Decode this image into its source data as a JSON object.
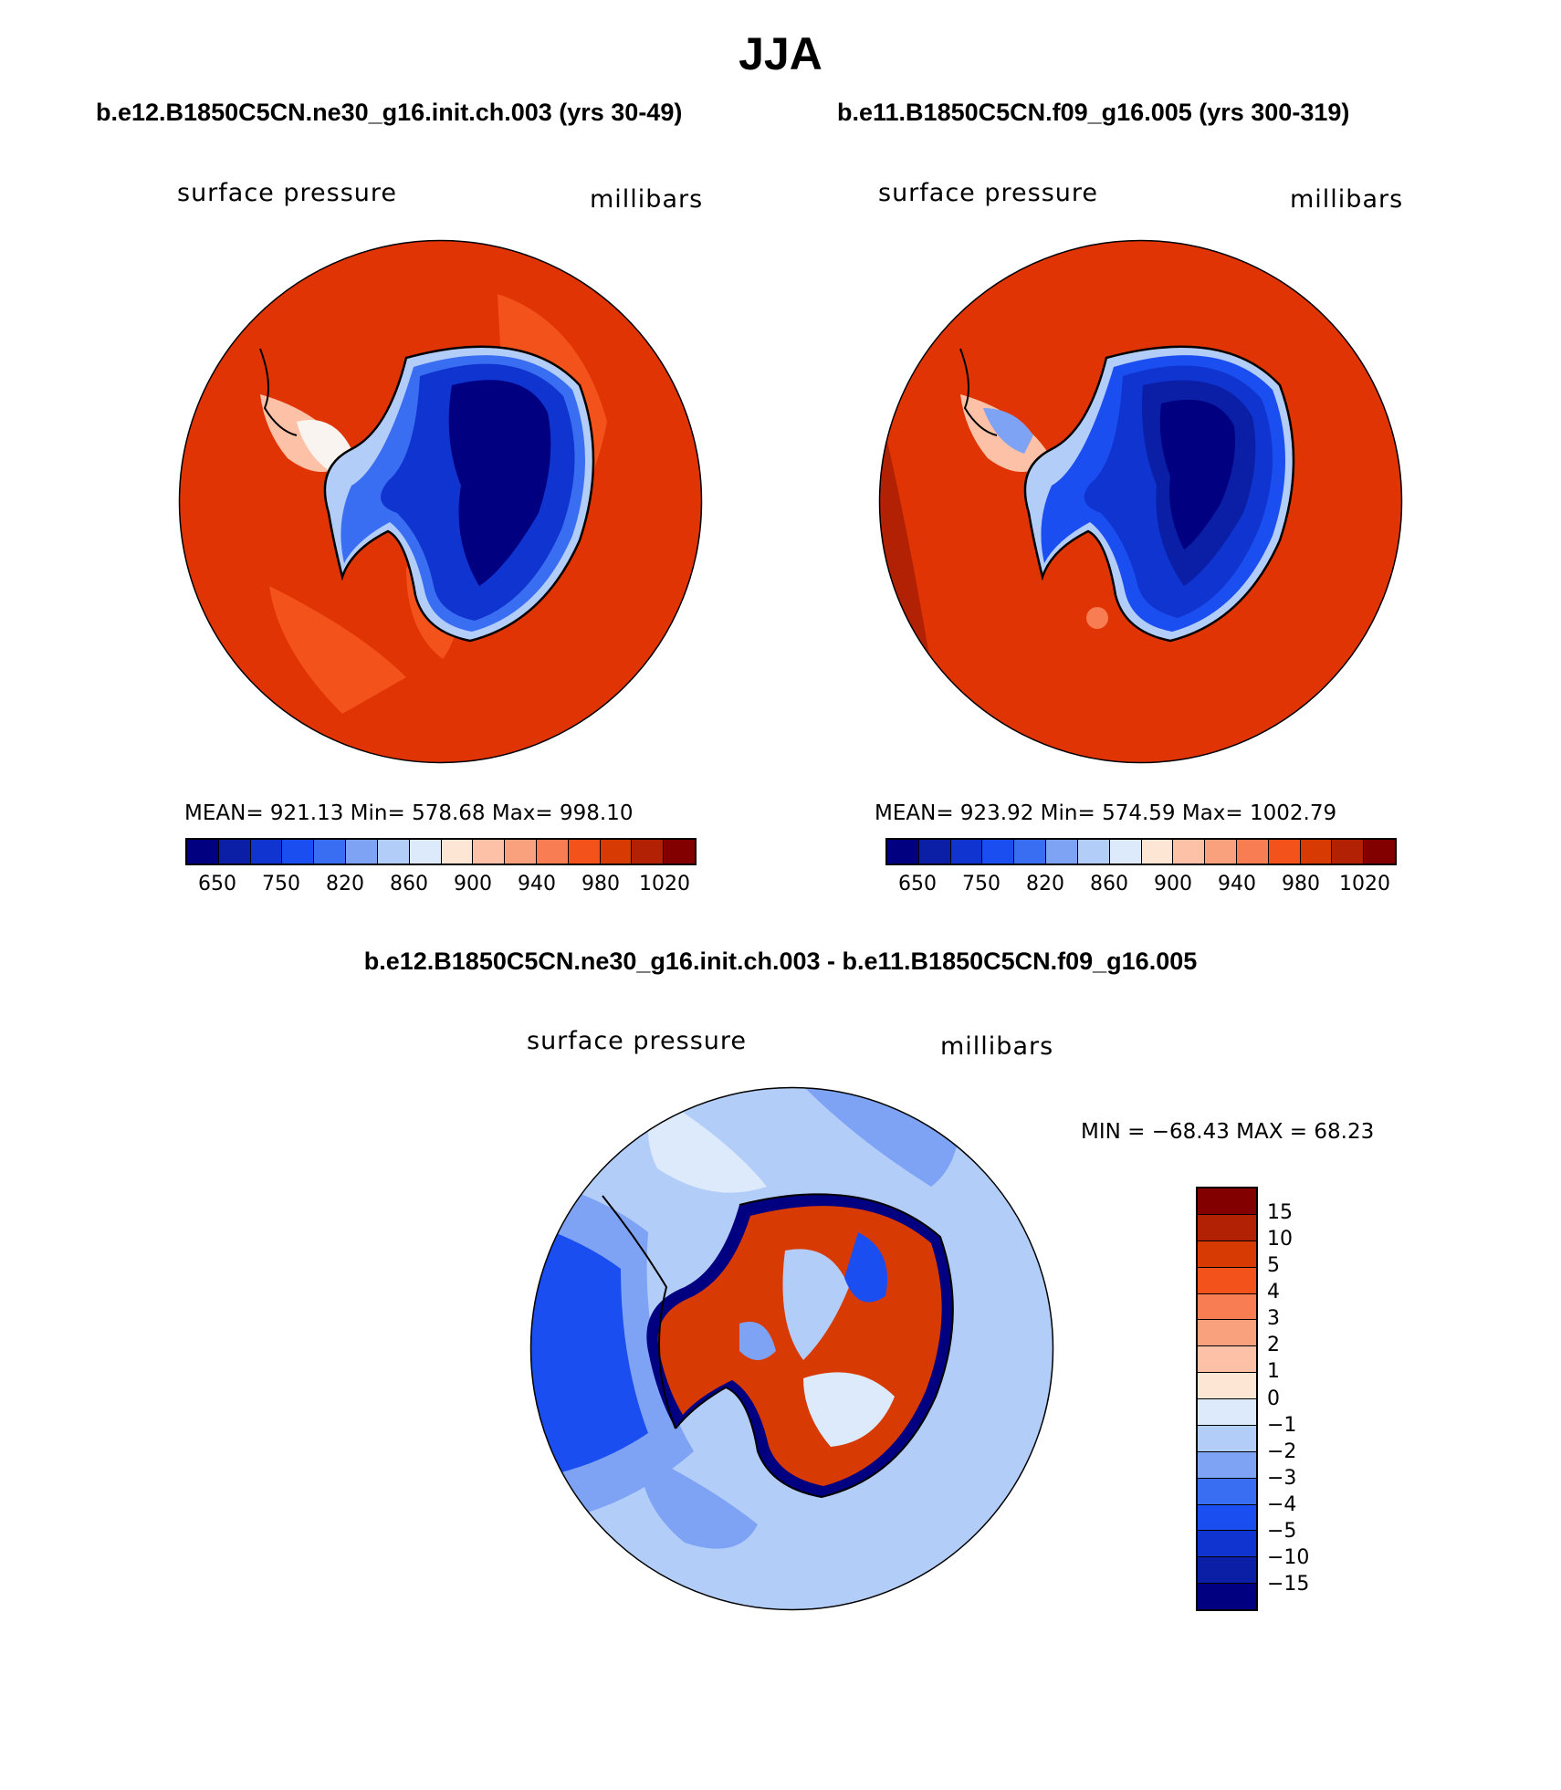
{
  "figure": {
    "title": "JJA",
    "diff_title": "b.e12.B1850C5CN.ne30_g16.init.ch.003 - b.e11.B1850C5CN.f09_g16.005"
  },
  "panels": [
    {
      "case_title": "b.e12.B1850C5CN.ne30_g16.init.ch.003 (yrs 30-49)",
      "variable": "surface pressure",
      "units": "millibars",
      "mean": "921.13",
      "min": "578.68",
      "max": "998.10",
      "stats_text": "MEAN= 921.13   Min= 578.68   Max= 998.10"
    },
    {
      "case_title": "b.e11.B1850C5CN.f09_g16.005 (yrs 300-319)",
      "variable": "surface pressure",
      "units": "millibars",
      "mean": "923.92",
      "min": "574.59",
      "max": "1002.79",
      "stats_text": "MEAN= 923.92   Min= 574.59   Max= 1002.79"
    },
    {
      "variable": "surface pressure",
      "units": "millibars",
      "min": "-68.43",
      "max": "68.23",
      "stats_text": "MIN = −68.43 MAX =  68.23"
    }
  ],
  "colorbar_abs": {
    "colors": [
      "#000080",
      "#0a1fa6",
      "#0f34d0",
      "#1b4ef0",
      "#3a6ef2",
      "#7ea3f4",
      "#b3cdf9",
      "#dceafb",
      "#fde6d4",
      "#fcc1a6",
      "#f9a07c",
      "#f97d52",
      "#f3531b",
      "#d83a03",
      "#b32105",
      "#820000"
    ],
    "labels": [
      "650",
      "750",
      "820",
      "860",
      "900",
      "940",
      "980",
      "1020"
    ]
  },
  "colorbar_diff": {
    "colors": [
      "#820000",
      "#b32105",
      "#d83a03",
      "#f3531b",
      "#f97d52",
      "#f9a07c",
      "#fcc1a6",
      "#fde6d4",
      "#dceafb",
      "#b3cdf9",
      "#7ea3f4",
      "#3a6ef2",
      "#1b4ef0",
      "#0f34d0",
      "#0a1fa6",
      "#000080"
    ],
    "labels": [
      "15",
      "10",
      "5",
      "4",
      "3",
      "2",
      "1",
      "0",
      "−1",
      "−2",
      "−3",
      "−4",
      "−5",
      "−10",
      "−15"
    ]
  },
  "map_colors": {
    "ocean_abs": "#e03405",
    "ocean_abs_light": "#f3531b",
    "ocean_abs_dark": "#b32105",
    "ice_deep": "#000080",
    "ice_mid": "#0f34d0",
    "ice_light": "#3a6ef2",
    "ice_edge": "#b3cdf9",
    "coast": "#dceafb",
    "diff_ocean": "#b3cdf9",
    "diff_ocean_mid": "#7ea3f4",
    "diff_ocean_dark": "#1b4ef0",
    "diff_land": "#d83a03"
  }
}
